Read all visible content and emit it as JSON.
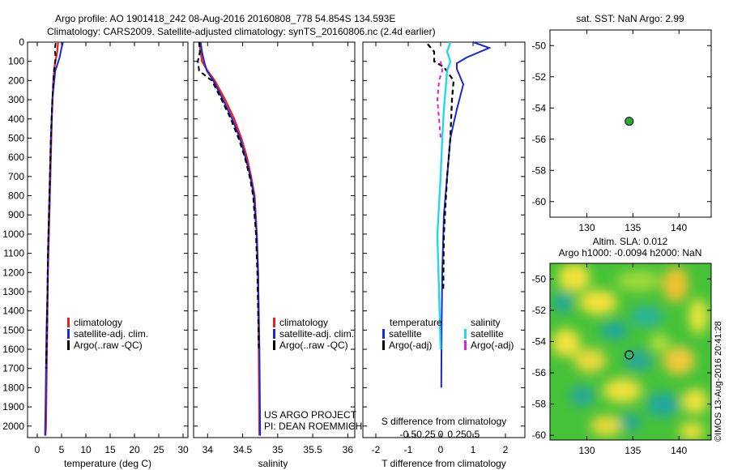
{
  "header": {
    "line1": "Argo profile: AO 1901418_242 08-Aug-2016 20160808_778 54.854S 134.593E",
    "line2": "Climatology: CARS2009. Satellite-adjusted climatology: synTS_20160806.nc (2.4d earlier)"
  },
  "colors": {
    "climatology": "#e8221e",
    "satellite": "#1a28d8",
    "argo": "#000000",
    "sal_sat": "#22d8e8",
    "sal_argo": "#e020e0",
    "dot": "#2eaa3a"
  },
  "credit_vertical": "©IMOS 13-Aug-2016 20:41:28",
  "chart_data": [
    {
      "type": "line",
      "id": "temperature",
      "xlabel": "temperature (deg C)",
      "ylabel": "",
      "xlim": [
        -2,
        31
      ],
      "ylim": [
        2060,
        0
      ],
      "y_reversed": true,
      "xticks": [
        0,
        5,
        10,
        15,
        20,
        25,
        30
      ],
      "yticks": [
        0,
        100,
        200,
        300,
        400,
        500,
        600,
        700,
        800,
        900,
        1000,
        1100,
        1200,
        1300,
        1400,
        1500,
        1600,
        1700,
        1800,
        1900,
        2000
      ],
      "legend": [
        "climatology",
        "satellite-adj. clim.",
        "Argo(..raw -QC)"
      ],
      "series": [
        {
          "name": "climatology",
          "x": [
            4.3,
            4.1,
            3.6,
            3.3,
            3.0,
            2.8,
            2.6,
            2.4,
            2.2,
            2.1,
            2.0,
            1.9,
            1.8,
            1.7
          ],
          "y": [
            0,
            50,
            120,
            200,
            400,
            600,
            800,
            1000,
            1200,
            1400,
            1600,
            1800,
            2000,
            2050
          ]
        },
        {
          "name": "satellite-adj. clim.",
          "x": [
            5.3,
            5.0,
            4.6,
            3.7,
            3.1,
            2.8,
            2.6,
            2.4,
            2.2,
            2.1,
            1.9,
            1.8,
            1.7,
            1.6
          ],
          "y": [
            0,
            30,
            80,
            150,
            300,
            500,
            700,
            900,
            1100,
            1300,
            1500,
            1700,
            1900,
            2050
          ]
        },
        {
          "name": "Argo(..raw -QC)",
          "x": [
            3.8,
            3.6,
            3.8,
            3.5,
            3.1,
            2.8,
            2.6,
            2.4,
            2.2,
            2.1,
            2.0,
            1.8
          ],
          "y": [
            5,
            40,
            80,
            130,
            300,
            500,
            700,
            900,
            1100,
            1300,
            1500,
            1700
          ]
        }
      ]
    },
    {
      "type": "line",
      "id": "salinity",
      "xlabel": "salinity",
      "xlim": [
        33.8,
        36.1
      ],
      "ylim": [
        2060,
        0
      ],
      "y_reversed": true,
      "xticks": [
        34,
        34.5,
        35,
        35.5,
        36
      ],
      "legend": [
        "climatology",
        "satellite-adj. clim.",
        "Argo(..raw -QC)"
      ],
      "series": [
        {
          "name": "climatology",
          "x": [
            33.88,
            33.9,
            33.92,
            34.0,
            34.1,
            34.25,
            34.38,
            34.48,
            34.56,
            34.62,
            34.67,
            34.7,
            34.72,
            34.73,
            34.74
          ],
          "y": [
            0,
            50,
            100,
            150,
            200,
            300,
            400,
            500,
            600,
            700,
            800,
            1000,
            1200,
            1600,
            2050
          ]
        },
        {
          "name": "satellite-adj. clim.",
          "x": [
            33.9,
            33.92,
            33.95,
            33.99,
            34.08,
            34.22,
            34.35,
            34.46,
            34.54,
            34.61,
            34.66,
            34.7,
            34.72,
            34.74,
            34.75
          ],
          "y": [
            0,
            50,
            100,
            150,
            200,
            300,
            400,
            500,
            600,
            700,
            800,
            1000,
            1200,
            1600,
            2050
          ]
        },
        {
          "name": "Argo(..raw -QC)",
          "x": [
            33.88,
            33.89,
            33.86,
            33.88,
            34.06,
            34.2,
            34.33,
            34.44,
            34.53,
            34.6,
            34.65,
            34.69,
            34.71,
            34.73
          ],
          "y": [
            0,
            50,
            100,
            150,
            200,
            300,
            400,
            500,
            600,
            700,
            800,
            1000,
            1200,
            1600
          ]
        }
      ],
      "notes": [
        "US ARGO PROJECT",
        "PI: DEAN ROEMMICH"
      ]
    },
    {
      "type": "line",
      "id": "differences",
      "xlabel": "T difference from climatology",
      "xlabel_top": "S difference from climatology",
      "xlim": [
        -2.4,
        2.6
      ],
      "ylim": [
        2060,
        0
      ],
      "y_reversed": true,
      "xticks": [
        -2,
        -1,
        0,
        1,
        2
      ],
      "s_ticks": [
        "-0.5",
        "-0.25",
        "0",
        "0.25",
        "0.5"
      ],
      "legend_groups": [
        "temperature",
        "salinity"
      ],
      "legend": [
        "satellite",
        "Argo(-adj)",
        "satellite",
        "Argo(-adj)"
      ],
      "series": [
        {
          "name": "temperature satellite",
          "x": [
            1.0,
            1.5,
            0.8,
            0.5,
            0.5,
            0.7,
            0.5,
            0.3,
            0.2,
            0.1,
            0.05,
            0.03,
            0.02
          ],
          "y": [
            0,
            30,
            80,
            110,
            140,
            220,
            350,
            500,
            700,
            900,
            1200,
            1500,
            1800
          ]
        },
        {
          "name": "temperature Argo(-adj)",
          "x": [
            -0.4,
            -0.2,
            -0.2,
            0.1,
            0.4,
            0.35,
            0.3,
            0.2,
            0.1,
            0.08
          ],
          "y": [
            10,
            50,
            100,
            130,
            200,
            300,
            500,
            700,
            1000,
            1300
          ]
        },
        {
          "name": "salinity satellite",
          "x": [
            0.3,
            0.2,
            0.3,
            0.2,
            0.15,
            0.1,
            0.05,
            0.0,
            -0.1,
            0.0
          ],
          "y": [
            0,
            50,
            100,
            150,
            250,
            350,
            500,
            700,
            1000,
            1600
          ]
        },
        {
          "name": "salinity Argo(-adj)",
          "x": [
            0.0,
            0.05,
            -0.05,
            -0.1,
            -0.05,
            0.0
          ],
          "y": [
            100,
            150,
            200,
            300,
            400,
            500
          ]
        }
      ]
    },
    {
      "type": "scatter",
      "id": "sst-map",
      "title": "sat. SST: NaN Argo: 2.99",
      "xlim": [
        126,
        143.5
      ],
      "ylim": [
        -61,
        -49
      ],
      "xticks": [
        130,
        135,
        140
      ],
      "yticks": [
        -50,
        -52,
        -54,
        -56,
        -58,
        -60
      ],
      "points": [
        {
          "x": 134.6,
          "y": -54.85
        }
      ]
    },
    {
      "type": "heatmap",
      "id": "sla-map",
      "title_line1": "Altim. SLA: 0.012",
      "title_line2": "Argo h1000: -0.0094 h2000: NaN",
      "xlim": [
        126,
        143.5
      ],
      "ylim": [
        -60.3,
        -49
      ],
      "xticks": [
        130,
        135,
        140
      ],
      "yticks": [
        -50,
        -52,
        -54,
        -56,
        -58,
        -60
      ],
      "points": [
        {
          "x": 134.6,
          "y": -54.85
        }
      ]
    }
  ]
}
